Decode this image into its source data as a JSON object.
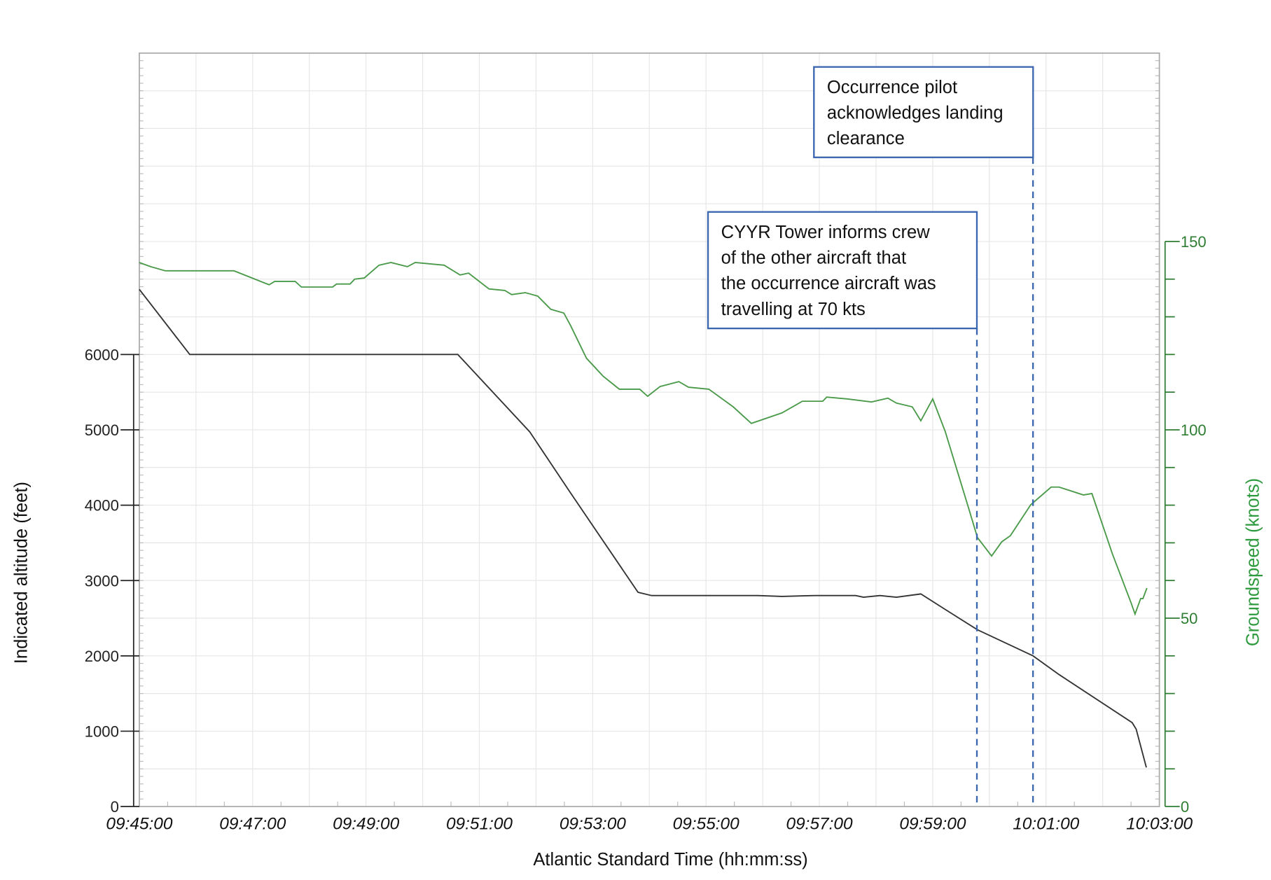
{
  "chart_data": {
    "type": "line",
    "xlabel": "Atlantic Standard Time (hh:mm:ss)",
    "ylabel": "Indicated altitude (feet)",
    "y2label": "Groundspeed (knots)",
    "x_unit": "minutes after 09:45:00",
    "xlim": [
      0,
      18
    ],
    "ylim": [
      0,
      10000
    ],
    "y2lim": [
      0,
      200
    ],
    "grid": true,
    "xticks": [
      {
        "v": 0,
        "label": "09:45:00"
      },
      {
        "v": 2,
        "label": "09:47:00"
      },
      {
        "v": 4,
        "label": "09:49:00"
      },
      {
        "v": 6,
        "label": "09:51:00"
      },
      {
        "v": 8,
        "label": "09:53:00"
      },
      {
        "v": 10,
        "label": "09:55:00"
      },
      {
        "v": 12,
        "label": "09:57:00"
      },
      {
        "v": 14,
        "label": "09:59:00"
      },
      {
        "v": 16,
        "label": "10:01:00"
      },
      {
        "v": 18,
        "label": "10:03:00"
      }
    ],
    "yticks": [
      {
        "v": 0,
        "label": "0"
      },
      {
        "v": 1000,
        "label": "1000"
      },
      {
        "v": 2000,
        "label": "2000"
      },
      {
        "v": 3000,
        "label": "3000"
      },
      {
        "v": 4000,
        "label": "4000"
      },
      {
        "v": 5000,
        "label": "5000"
      },
      {
        "v": 6000,
        "label": "6000"
      }
    ],
    "y2ticks": [
      {
        "v": 0,
        "label": "0"
      },
      {
        "v": 50,
        "label": "50"
      },
      {
        "v": 100,
        "label": "100"
      },
      {
        "v": 150,
        "label": "150"
      }
    ],
    "series": [
      {
        "name": "Indicated altitude",
        "axis": "left",
        "color": "#333333",
        "x": [
          0,
          0.89,
          5.62,
          6.89,
          7.61,
          8.8,
          9.04,
          10.91,
          11.34,
          11.92,
          12.64,
          12.78,
          13.07,
          13.36,
          13.79,
          14.22,
          14.79,
          15.77,
          16.23,
          17.52,
          17.59,
          17.77
        ],
        "y": [
          6865,
          6000,
          6000,
          4973,
          4162,
          2843,
          2800,
          2800,
          2789,
          2800,
          2800,
          2778,
          2800,
          2778,
          2822,
          2616,
          2346,
          2000,
          1751,
          1113,
          1027,
          519
        ]
      },
      {
        "name": "Groundspeed",
        "axis": "right",
        "color": "#4a9a4a",
        "x": [
          0,
          0.2,
          0.46,
          1.67,
          2.29,
          2.39,
          2.75,
          2.86,
          3.41,
          3.48,
          3.72,
          3.8,
          3.97,
          4.23,
          4.44,
          4.73,
          4.87,
          5.38,
          5.66,
          5.81,
          6.17,
          6.45,
          6.57,
          6.81,
          7.03,
          7.26,
          7.49,
          7.61,
          7.89,
          8.18,
          8.47,
          8.83,
          8.97,
          9.19,
          9.52,
          9.69,
          10.05,
          10.48,
          10.8,
          11.34,
          11.7,
          12.06,
          12.13,
          12.49,
          12.92,
          13.21,
          13.36,
          13.64,
          13.79,
          14.0,
          14.22,
          14.65,
          14.79,
          15.04,
          15.22,
          15.37,
          15.73,
          16.09,
          16.23,
          16.66,
          16.81,
          17.17,
          17.5,
          17.57,
          17.67,
          17.71,
          17.78
        ],
        "y": [
          144.4,
          143.3,
          142.2,
          142.2,
          138.5,
          139.4,
          139.4,
          137.9,
          137.9,
          138.7,
          138.7,
          140.0,
          140.3,
          143.7,
          144.4,
          143.3,
          144.4,
          143.7,
          141.1,
          141.6,
          137.4,
          137.0,
          135.9,
          136.4,
          135.5,
          132.0,
          131.0,
          127.7,
          119.0,
          114.3,
          110.8,
          110.8,
          108.9,
          111.5,
          112.8,
          111.3,
          110.8,
          106.1,
          101.7,
          104.5,
          107.6,
          107.6,
          108.7,
          108.2,
          107.4,
          108.4,
          107.1,
          106.1,
          102.4,
          108.2,
          99.6,
          78.4,
          71.4,
          66.5,
          70.3,
          71.9,
          80.1,
          84.8,
          84.8,
          82.7,
          83.1,
          67.1,
          54.1,
          51.1,
          55.2,
          55.2,
          58.0
        ]
      }
    ],
    "annotations": [
      {
        "x": 14.78,
        "lines": [
          "CYYR Tower informs crew",
          "of the other aircraft that",
          "the occurrence aircraft was",
          "travelling at 70 kts"
        ]
      },
      {
        "x": 15.77,
        "lines": [
          "Occurrence pilot",
          "acknowledges landing",
          "clearance"
        ]
      }
    ],
    "colors": {
      "altitude": "#333333",
      "groundspeed": "#4a9a4a",
      "axis2": "#2e7d32",
      "annotation": "#3a66b0"
    }
  }
}
